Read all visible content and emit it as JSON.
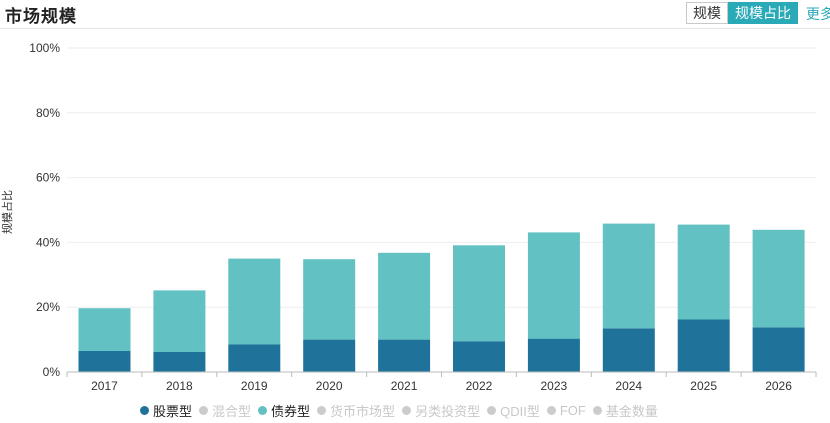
{
  "header": {
    "title": "市场规模",
    "toggle": [
      {
        "label": "规模",
        "active": false
      },
      {
        "label": "规模占比",
        "active": true
      }
    ],
    "more_label": "更多"
  },
  "colors": {
    "stock": "#1f739a",
    "bond": "#62c1c3",
    "inactive": "#cccccc",
    "accent": "#2aa9b6",
    "grid": "#eeeeee"
  },
  "legend": [
    {
      "label": "股票型",
      "active": true,
      "color": "#1f739a"
    },
    {
      "label": "混合型",
      "active": false,
      "color": "#cccccc"
    },
    {
      "label": "债券型",
      "active": true,
      "color": "#62c1c3"
    },
    {
      "label": "货币市场型",
      "active": false,
      "color": "#cccccc"
    },
    {
      "label": "另类投资型",
      "active": false,
      "color": "#cccccc"
    },
    {
      "label": "QDII型",
      "active": false,
      "color": "#cccccc"
    },
    {
      "label": "FOF",
      "active": false,
      "color": "#cccccc"
    },
    {
      "label": "基金数量",
      "active": false,
      "color": "#cccccc"
    }
  ],
  "chart_data": {
    "type": "bar",
    "stacked": true,
    "categories": [
      "2017",
      "2018",
      "2019",
      "2020",
      "2021",
      "2022",
      "2023",
      "2024",
      "2025",
      "2026"
    ],
    "series": [
      {
        "name": "股票型",
        "color": "#1f739a",
        "values": [
          6.5,
          6.2,
          8.5,
          10.0,
          10.0,
          9.5,
          10.3,
          13.5,
          16.2,
          13.8
        ]
      },
      {
        "name": "债券型",
        "color": "#62c1c3",
        "values": [
          13.2,
          19.0,
          26.5,
          24.8,
          26.8,
          29.6,
          32.8,
          32.3,
          29.3,
          30.1
        ]
      }
    ],
    "ylabel": "规模占比",
    "ylim": [
      0,
      100
    ],
    "yticks": [
      "0%",
      "20%",
      "40%",
      "60%",
      "80%",
      "100%"
    ],
    "grid": true,
    "legend_position": "bottom"
  }
}
